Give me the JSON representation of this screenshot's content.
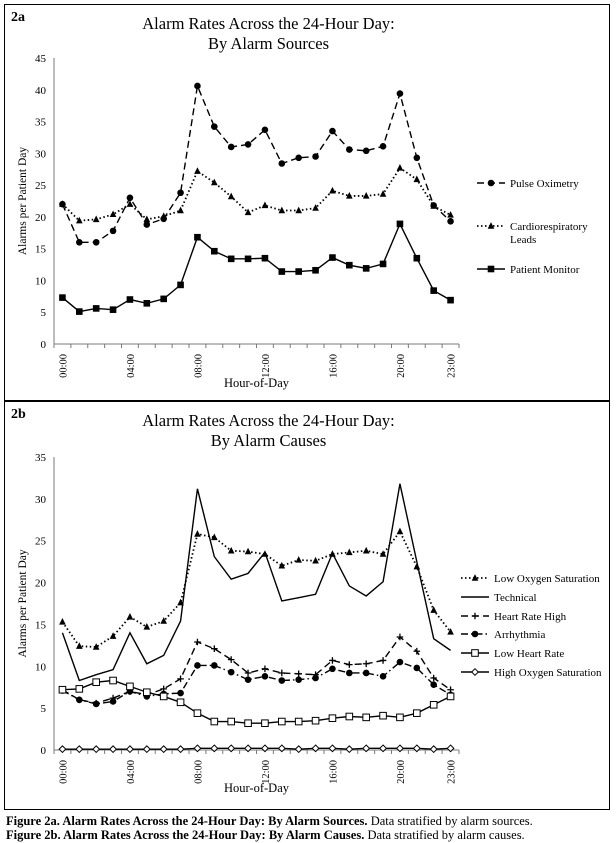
{
  "chart_data": [
    {
      "panel": "2a",
      "type": "line",
      "title": [
        "Alarm Rates Across the 24-Hour Day:",
        "By Alarm Sources"
      ],
      "xlabel": "Hour-of-Day",
      "ylabel": "Alarms per Patient Day",
      "ylim": [
        0,
        45
      ],
      "yticks": [
        0,
        5,
        10,
        15,
        20,
        25,
        30,
        35,
        40,
        45
      ],
      "xtick_labels": [
        {
          "hour": 0,
          "label": "00:00"
        },
        {
          "hour": 4,
          "label": "04:00"
        },
        {
          "hour": 8,
          "label": "08:00"
        },
        {
          "hour": 12,
          "label": "12:00"
        },
        {
          "hour": 16,
          "label": "16:00"
        },
        {
          "hour": 20,
          "label": "20:00"
        },
        {
          "hour": 23,
          "label": "23:00"
        }
      ],
      "grid": false,
      "legend_position": "right",
      "x": [
        0,
        1,
        2,
        3,
        4,
        5,
        6,
        7,
        8,
        9,
        10,
        11,
        12,
        13,
        14,
        15,
        16,
        17,
        18,
        19,
        20,
        21,
        22,
        23
      ],
      "series": [
        {
          "name": "Pulse Oximetry",
          "style": "dashed",
          "marker": "circle",
          "values": [
            22.0,
            16.0,
            16.0,
            17.8,
            23.0,
            18.8,
            19.7,
            23.8,
            40.6,
            34.2,
            31.0,
            31.4,
            33.7,
            28.4,
            29.3,
            29.5,
            33.5,
            30.6,
            30.4,
            31.1,
            39.4,
            29.3,
            21.8,
            19.3
          ]
        },
        {
          "name": [
            "Cardiorespiratory",
            "Leads"
          ],
          "style": "dotted",
          "marker": "triangle",
          "values": [
            22.0,
            19.4,
            19.6,
            20.4,
            22.0,
            19.6,
            20.1,
            21.0,
            27.2,
            25.4,
            23.2,
            20.7,
            21.8,
            21.0,
            21.0,
            21.4,
            24.1,
            23.3,
            23.3,
            23.6,
            27.7,
            25.9,
            21.7,
            20.3
          ]
        },
        {
          "name": "Patient Monitor",
          "style": "solid",
          "marker": "square",
          "values": [
            7.3,
            5.1,
            5.6,
            5.4,
            7.0,
            6.4,
            7.1,
            9.3,
            16.8,
            14.6,
            13.4,
            13.4,
            13.5,
            11.4,
            11.4,
            11.6,
            13.6,
            12.4,
            11.9,
            12.6,
            18.9,
            13.5,
            8.4,
            6.9
          ]
        }
      ]
    },
    {
      "panel": "2b",
      "type": "line",
      "title": [
        "Alarm Rates Across the 24-Hour Day:",
        "By Alarm Causes"
      ],
      "xlabel": "Hour-of-Day",
      "ylabel": "Alarms per Patient Day",
      "ylim": [
        0,
        35
      ],
      "yticks": [
        0,
        5,
        10,
        15,
        20,
        25,
        30,
        35
      ],
      "xtick_labels": [
        {
          "hour": 0,
          "label": "00:00"
        },
        {
          "hour": 4,
          "label": "04:00"
        },
        {
          "hour": 8,
          "label": "08:00"
        },
        {
          "hour": 12,
          "label": "12:00"
        },
        {
          "hour": 16,
          "label": "16:00"
        },
        {
          "hour": 20,
          "label": "20:00"
        },
        {
          "hour": 23,
          "label": "23:00"
        }
      ],
      "grid": false,
      "legend_position": "right",
      "x": [
        0,
        1,
        2,
        3,
        4,
        5,
        6,
        7,
        8,
        9,
        10,
        11,
        12,
        13,
        14,
        15,
        16,
        17,
        18,
        19,
        20,
        21,
        22,
        23
      ],
      "series": [
        {
          "name": "Low Oxygen Saturation",
          "style": "dotted",
          "marker": "triangle",
          "values": [
            15.3,
            12.4,
            12.3,
            13.6,
            15.9,
            14.7,
            15.4,
            17.6,
            25.8,
            25.4,
            23.8,
            23.7,
            23.4,
            22.0,
            22.7,
            22.6,
            23.4,
            23.6,
            23.8,
            23.4,
            26.1,
            21.9,
            16.7,
            14.1
          ]
        },
        {
          "name": "Technical",
          "style": "solid",
          "marker": "none",
          "values": [
            14.0,
            8.3,
            9.0,
            9.6,
            14.0,
            10.3,
            11.3,
            15.4,
            31.2,
            23.1,
            20.4,
            21.1,
            23.6,
            17.8,
            18.2,
            18.6,
            23.5,
            19.6,
            18.4,
            20.1,
            31.8,
            22.5,
            13.3,
            11.9
          ]
        },
        {
          "name": "Heart Rate High",
          "style": "dashed",
          "marker": "plus",
          "values": [
            7.2,
            6.0,
            5.6,
            6.2,
            7.0,
            6.6,
            7.3,
            8.5,
            12.9,
            12.1,
            10.8,
            9.2,
            9.7,
            9.2,
            9.1,
            9.0,
            10.7,
            10.2,
            10.3,
            10.7,
            13.5,
            11.8,
            8.6,
            7.2
          ]
        },
        {
          "name": "Arrhythmia",
          "style": "dashdot",
          "marker": "circle",
          "values": [
            7.1,
            6.0,
            5.5,
            5.8,
            7.0,
            6.4,
            6.7,
            6.8,
            10.1,
            10.1,
            9.3,
            8.4,
            8.8,
            8.3,
            8.4,
            8.6,
            9.7,
            9.2,
            9.2,
            8.8,
            10.5,
            9.8,
            7.8,
            6.6
          ]
        },
        {
          "name": "Low Heart Rate",
          "style": "solid",
          "marker": "square-open",
          "values": [
            7.2,
            7.3,
            8.1,
            8.3,
            7.6,
            6.9,
            6.4,
            5.7,
            4.4,
            3.4,
            3.4,
            3.2,
            3.2,
            3.4,
            3.4,
            3.5,
            3.8,
            4.0,
            3.9,
            4.1,
            3.9,
            4.4,
            5.4,
            6.4
          ]
        },
        {
          "name": "High Oxygen Saturation",
          "style": "solid",
          "marker": "diamond-open",
          "values": [
            0.1,
            0.1,
            0.1,
            0.1,
            0.1,
            0.1,
            0.1,
            0.1,
            0.2,
            0.2,
            0.2,
            0.2,
            0.2,
            0.2,
            0.1,
            0.2,
            0.2,
            0.1,
            0.2,
            0.2,
            0.2,
            0.2,
            0.1,
            0.2
          ]
        }
      ]
    }
  ],
  "panels": {
    "a_tag": "2a",
    "b_tag": "2b"
  },
  "captions": {
    "a_bold": "Figure 2a. Alarm Rates Across the 24-Hour Day: By Alarm Sources.",
    "a_text": " Data stratified by alarm sources.",
    "b_bold": "Figure 2b. Alarm Rates Across the 24-Hour Day: By Alarm Causes.",
    "b_text": " Data stratified by alarm causes."
  }
}
